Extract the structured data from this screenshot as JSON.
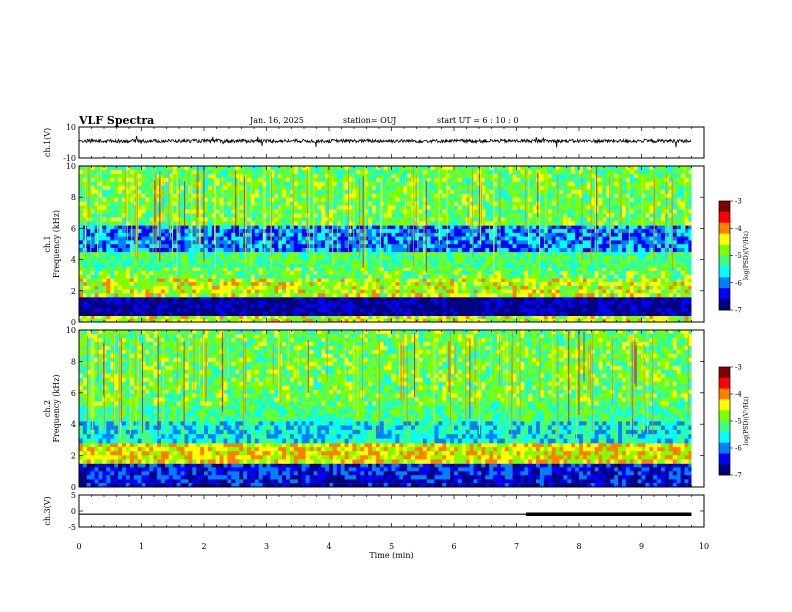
{
  "header": {
    "title": "VLF Spectra",
    "date": "Jan. 16, 2025",
    "station": "station= OUJ",
    "start": "start UT =  6 : 10 : 0"
  },
  "colors": {
    "colormap": [
      "#000080",
      "#0000ff",
      "#0080ff",
      "#00ffff",
      "#40ff80",
      "#80ff00",
      "#ffff00",
      "#ff8000",
      "#ff0000",
      "#800000"
    ],
    "trace": "#000000"
  },
  "chart_data": [
    {
      "type": "line",
      "ylabel": "ch.1(V)",
      "yticks": [
        "10",
        "-10"
      ],
      "ylim": [
        -10,
        10
      ],
      "xlim": [
        0,
        10
      ],
      "note_values": "noise trace centered near 0 V with occasional spikes",
      "x": [
        0,
        1,
        2,
        3,
        4,
        5,
        6,
        7,
        8,
        9,
        9.8
      ],
      "y": [
        1,
        1,
        1,
        1,
        1,
        1,
        1,
        1,
        1,
        1,
        1
      ]
    },
    {
      "type": "heatmap",
      "ylabel": "ch.1\nFrequency (kHz)",
      "yticks": [
        "0",
        "2",
        "4",
        "6",
        "8",
        "10"
      ],
      "ylim": [
        0,
        10
      ],
      "xlim": [
        0,
        10
      ],
      "colorbar": {
        "label": "log(PSD)(V²/Hz)",
        "ticks": [
          "-3",
          "-4",
          "-5",
          "-6",
          "-7"
        ],
        "range": [
          -7,
          -3
        ]
      },
      "bands_khz": [
        {
          "f": [
            0,
            0.4
          ],
          "level": 0.6
        },
        {
          "f": [
            0.4,
            1.6
          ],
          "level": 0.05
        },
        {
          "f": [
            1.6,
            2.8
          ],
          "level": 0.6
        },
        {
          "f": [
            2.8,
            3.5
          ],
          "level": 0.5
        },
        {
          "f": [
            3.5,
            4.5
          ],
          "level": 0.45
        },
        {
          "f": [
            4.5,
            6.2
          ],
          "level": 0.25
        },
        {
          "f": [
            6.2,
            10
          ],
          "level": 0.5
        }
      ]
    },
    {
      "type": "heatmap",
      "ylabel": "ch.2\nFrequency (kHz)",
      "yticks": [
        "0",
        "2",
        "4",
        "6",
        "8",
        "10"
      ],
      "ylim": [
        0,
        10
      ],
      "xlim": [
        0,
        10
      ],
      "colorbar": {
        "label": "log(PSD)(V²/Hz)",
        "ticks": [
          "-3",
          "-4",
          "-5",
          "-6",
          "-7"
        ],
        "range": [
          -7,
          -3
        ]
      },
      "bands_khz": [
        {
          "f": [
            0,
            0.5
          ],
          "level": 0.1
        },
        {
          "f": [
            0.5,
            1.5
          ],
          "level": 0.15
        },
        {
          "f": [
            1.5,
            2.8
          ],
          "level": 0.65
        },
        {
          "f": [
            2.8,
            4.2
          ],
          "level": 0.35
        },
        {
          "f": [
            4.2,
            5.2
          ],
          "level": 0.45
        },
        {
          "f": [
            5.2,
            6.2
          ],
          "level": 0.5
        },
        {
          "f": [
            6.2,
            10
          ],
          "level": 0.5
        }
      ]
    },
    {
      "type": "line",
      "ylabel": "ch.3(V)",
      "yticks": [
        "5",
        "0",
        "-5"
      ],
      "ylim": [
        -5,
        5
      ],
      "xlim": [
        0,
        10
      ],
      "x": [
        0,
        7.15,
        7.15,
        9.8
      ],
      "y": [
        -1.0,
        -1.0,
        -1.0,
        -1.0
      ],
      "thick_from": 7.15
    }
  ],
  "xaxis": {
    "label": "Time (min)",
    "ticks": [
      "0",
      "1",
      "2",
      "3",
      "4",
      "5",
      "6",
      "7",
      "8",
      "9",
      "10"
    ]
  }
}
